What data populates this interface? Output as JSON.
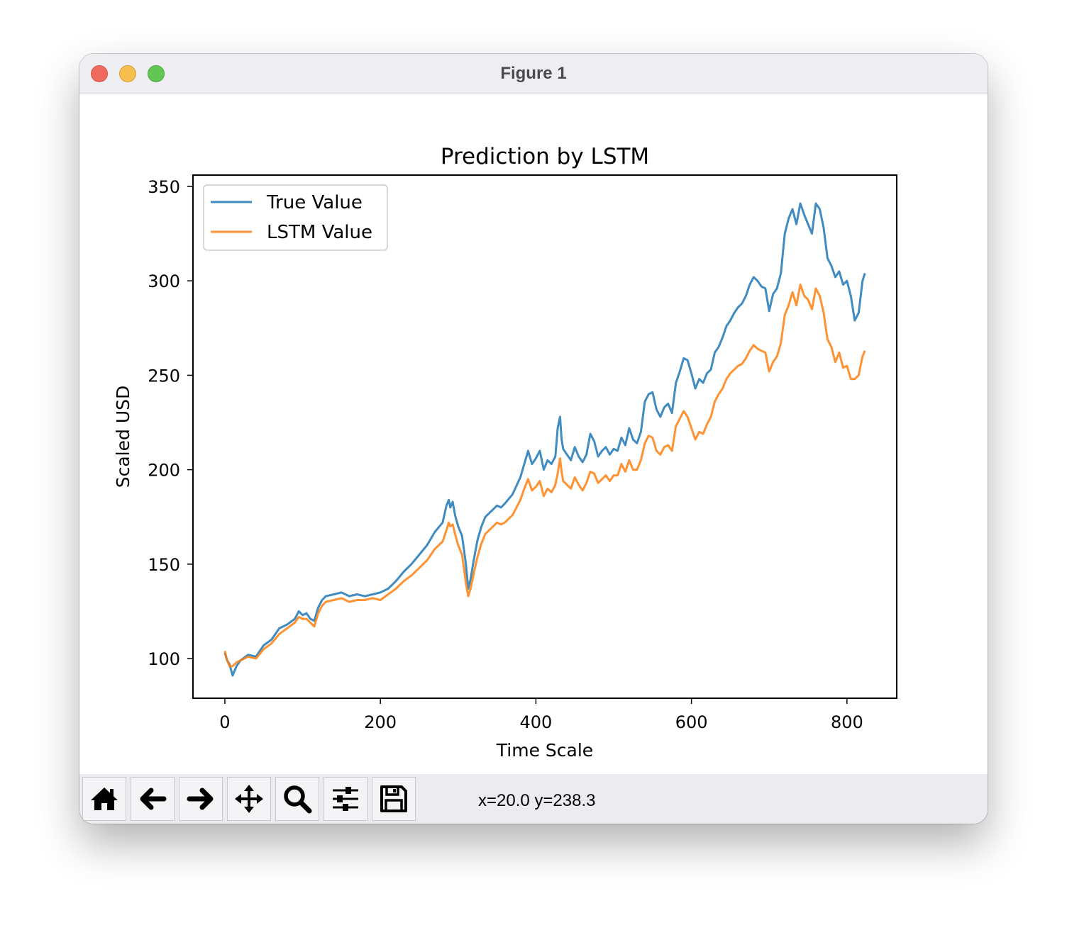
{
  "window": {
    "title": "Figure 1"
  },
  "toolbar": {
    "buttons": [
      {
        "name": "home-button",
        "icon": "home-icon"
      },
      {
        "name": "back-button",
        "icon": "arrow-left-icon"
      },
      {
        "name": "forward-button",
        "icon": "arrow-right-icon"
      },
      {
        "name": "pan-button",
        "icon": "move-icon"
      },
      {
        "name": "zoom-button",
        "icon": "search-icon"
      },
      {
        "name": "configure-subplots-button",
        "icon": "sliders-icon"
      },
      {
        "name": "save-button",
        "icon": "floppy-disk-icon"
      }
    ],
    "coords": "x=20.0 y=238.3"
  },
  "chart_data": {
    "type": "line",
    "title": "Prediction by LSTM",
    "xlabel": "Time Scale",
    "ylabel": "Scaled USD",
    "xlim": [
      -41,
      864
    ],
    "ylim": [
      79,
      356
    ],
    "xticks": [
      0,
      200,
      400,
      600,
      800
    ],
    "yticks": [
      100,
      150,
      200,
      250,
      300,
      350
    ],
    "grid": false,
    "legend": "top-left",
    "series": [
      {
        "name": "True Value",
        "color": "#1f77b4",
        "x": [
          0,
          3,
          6,
          10,
          15,
          20,
          30,
          40,
          50,
          60,
          70,
          80,
          90,
          95,
          100,
          105,
          110,
          115,
          120,
          125,
          130,
          140,
          150,
          160,
          170,
          180,
          190,
          200,
          210,
          220,
          230,
          240,
          250,
          260,
          270,
          280,
          285,
          288,
          290,
          293,
          296,
          300,
          305,
          310,
          313,
          316,
          320,
          325,
          330,
          335,
          340,
          345,
          350,
          355,
          360,
          370,
          380,
          385,
          390,
          395,
          400,
          405,
          410,
          415,
          420,
          425,
          428,
          431,
          433,
          435,
          440,
          445,
          450,
          455,
          460,
          465,
          470,
          475,
          480,
          485,
          490,
          495,
          500,
          505,
          510,
          515,
          520,
          525,
          530,
          535,
          540,
          545,
          550,
          555,
          560,
          565,
          570,
          575,
          580,
          585,
          590,
          595,
          600,
          605,
          610,
          615,
          620,
          625,
          630,
          635,
          640,
          645,
          650,
          655,
          660,
          665,
          670,
          675,
          680,
          685,
          690,
          695,
          700,
          705,
          710,
          715,
          720,
          725,
          730,
          735,
          740,
          745,
          750,
          755,
          760,
          765,
          770,
          775,
          780,
          785,
          790,
          795,
          800,
          805,
          810,
          815,
          820,
          823
        ],
        "y": [
          103,
          99,
          97,
          91,
          96,
          99,
          102,
          101,
          107,
          110,
          116,
          118,
          121,
          125,
          123,
          124,
          121,
          120,
          127,
          131,
          133,
          134,
          135,
          133,
          134,
          133,
          134,
          135,
          137,
          141,
          146,
          150,
          155,
          160,
          167,
          172,
          181,
          184,
          180,
          183,
          176,
          170,
          165,
          150,
          137,
          142,
          152,
          163,
          170,
          175,
          177,
          179,
          181,
          180,
          182,
          187,
          196,
          203,
          210,
          203,
          206,
          210,
          200,
          205,
          203,
          207,
          222,
          228,
          216,
          211,
          208,
          205,
          212,
          207,
          204,
          208,
          219,
          215,
          207,
          210,
          212,
          208,
          211,
          210,
          217,
          213,
          222,
          216,
          214,
          220,
          236,
          240,
          241,
          232,
          228,
          233,
          235,
          230,
          246,
          252,
          259,
          258,
          251,
          243,
          248,
          246,
          251,
          253,
          262,
          265,
          270,
          276,
          279,
          283,
          286,
          288,
          292,
          298,
          302,
          300,
          297,
          296,
          284,
          293,
          296,
          304,
          325,
          333,
          338,
          330,
          341,
          335,
          330,
          325,
          341,
          338,
          328,
          312,
          308,
          302,
          305,
          298,
          300,
          292,
          279,
          283,
          300,
          304
        ]
      },
      {
        "name": "LSTM Value",
        "color": "#ff7f0e",
        "x": [
          0,
          3,
          6,
          10,
          15,
          20,
          30,
          40,
          50,
          60,
          70,
          80,
          90,
          95,
          100,
          105,
          110,
          115,
          120,
          125,
          130,
          140,
          150,
          160,
          170,
          180,
          190,
          200,
          210,
          220,
          230,
          240,
          250,
          260,
          270,
          280,
          285,
          288,
          290,
          293,
          296,
          300,
          305,
          310,
          313,
          316,
          320,
          325,
          330,
          335,
          340,
          345,
          350,
          355,
          360,
          370,
          380,
          385,
          390,
          395,
          400,
          405,
          410,
          415,
          420,
          425,
          428,
          431,
          433,
          435,
          440,
          445,
          450,
          455,
          460,
          465,
          470,
          475,
          480,
          485,
          490,
          495,
          500,
          505,
          510,
          515,
          520,
          525,
          530,
          535,
          540,
          545,
          550,
          555,
          560,
          565,
          570,
          575,
          580,
          585,
          590,
          595,
          600,
          605,
          610,
          615,
          620,
          625,
          630,
          635,
          640,
          645,
          650,
          655,
          660,
          665,
          670,
          675,
          680,
          685,
          690,
          695,
          700,
          705,
          710,
          715,
          720,
          725,
          730,
          735,
          740,
          745,
          750,
          755,
          760,
          765,
          770,
          775,
          780,
          785,
          790,
          795,
          800,
          805,
          810,
          815,
          820,
          823
        ],
        "y": [
          104,
          99,
          96,
          96,
          98,
          99,
          101,
          100,
          105,
          108,
          113,
          116,
          119,
          122,
          121,
          121,
          119,
          117,
          124,
          128,
          130,
          131,
          132,
          130,
          131,
          131,
          132,
          131,
          134,
          137,
          141,
          144,
          148,
          152,
          158,
          162,
          168,
          172,
          170,
          171,
          166,
          160,
          155,
          140,
          133,
          137,
          145,
          154,
          161,
          166,
          168,
          170,
          172,
          171,
          172,
          176,
          184,
          190,
          195,
          189,
          191,
          194,
          186,
          190,
          188,
          192,
          198,
          206,
          199,
          194,
          192,
          190,
          196,
          192,
          189,
          193,
          199,
          198,
          193,
          195,
          197,
          194,
          197,
          197,
          203,
          199,
          205,
          200,
          200,
          205,
          214,
          218,
          217,
          210,
          208,
          212,
          213,
          210,
          223,
          227,
          231,
          228,
          222,
          216,
          220,
          219,
          224,
          228,
          236,
          240,
          243,
          248,
          251,
          253,
          255,
          256,
          259,
          263,
          266,
          264,
          263,
          262,
          252,
          257,
          260,
          267,
          282,
          287,
          294,
          287,
          298,
          292,
          290,
          285,
          296,
          292,
          283,
          269,
          265,
          257,
          262,
          254,
          255,
          248,
          248,
          250,
          260,
          263
        ]
      }
    ]
  }
}
